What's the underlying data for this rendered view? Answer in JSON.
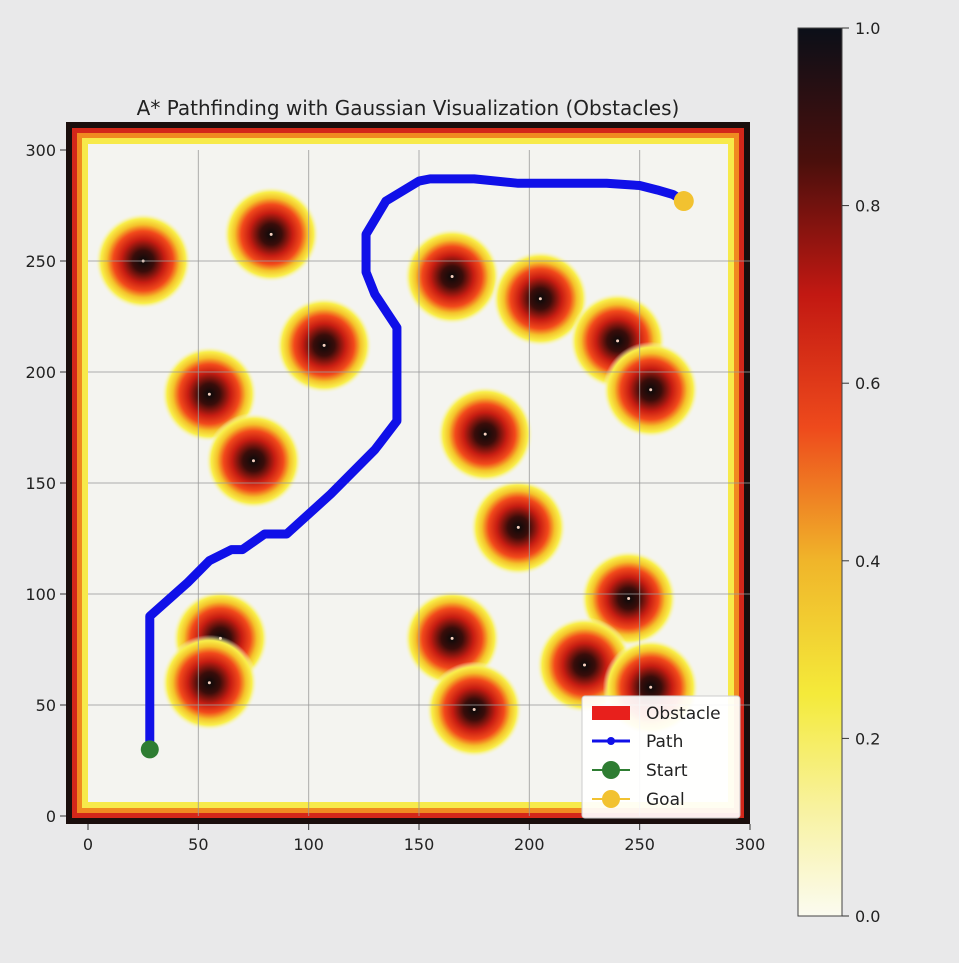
{
  "chart_data": {
    "type": "heatmap",
    "title": "A* Pathfinding with Gaussian Visualization (Obstacles)",
    "xlabel": "",
    "ylabel": "",
    "xlim": [
      0,
      300
    ],
    "ylim": [
      0,
      300
    ],
    "x_ticks": [
      0,
      50,
      100,
      150,
      200,
      250,
      300
    ],
    "y_ticks": [
      0,
      50,
      100,
      150,
      200,
      250,
      300
    ],
    "grid": true,
    "colormap": "hot_r",
    "colorbar": {
      "range": [
        0.0,
        1.0
      ],
      "ticks": [
        "0.0",
        "0.2",
        "0.4",
        "0.6",
        "0.8",
        "1.0"
      ]
    },
    "obstacles": [
      {
        "x": 25,
        "y": 250
      },
      {
        "x": 83,
        "y": 262
      },
      {
        "x": 107,
        "y": 212
      },
      {
        "x": 55,
        "y": 190
      },
      {
        "x": 75,
        "y": 160
      },
      {
        "x": 165,
        "y": 243
      },
      {
        "x": 205,
        "y": 233
      },
      {
        "x": 240,
        "y": 214
      },
      {
        "x": 255,
        "y": 192
      },
      {
        "x": 180,
        "y": 172
      },
      {
        "x": 195,
        "y": 130
      },
      {
        "x": 245,
        "y": 98
      },
      {
        "x": 60,
        "y": 80
      },
      {
        "x": 55,
        "y": 60
      },
      {
        "x": 165,
        "y": 80
      },
      {
        "x": 175,
        "y": 48
      },
      {
        "x": 225,
        "y": 68
      },
      {
        "x": 255,
        "y": 58
      }
    ],
    "path": {
      "x": [
        28,
        28,
        45,
        55,
        65,
        70,
        80,
        90,
        110,
        130,
        140,
        140,
        130,
        126,
        126,
        135,
        150,
        155,
        175,
        195,
        215,
        235,
        250,
        258,
        265,
        270
      ],
      "y": [
        30,
        90,
        105,
        115,
        120,
        120,
        127,
        127,
        145,
        165,
        178,
        220,
        235,
        245,
        262,
        277,
        286,
        287,
        287,
        285,
        285,
        285,
        284,
        282,
        280,
        277
      ]
    },
    "start": {
      "x": 28,
      "y": 30
    },
    "goal": {
      "x": 270,
      "y": 277
    },
    "legend": {
      "position": "lower-right",
      "entries": [
        {
          "label": "Obstacle",
          "color": "#e8201c"
        },
        {
          "label": "Path",
          "color": "#1010e8"
        },
        {
          "label": "Start",
          "color": "#2e7d32"
        },
        {
          "label": "Goal",
          "color": "#f2c230"
        }
      ]
    }
  }
}
